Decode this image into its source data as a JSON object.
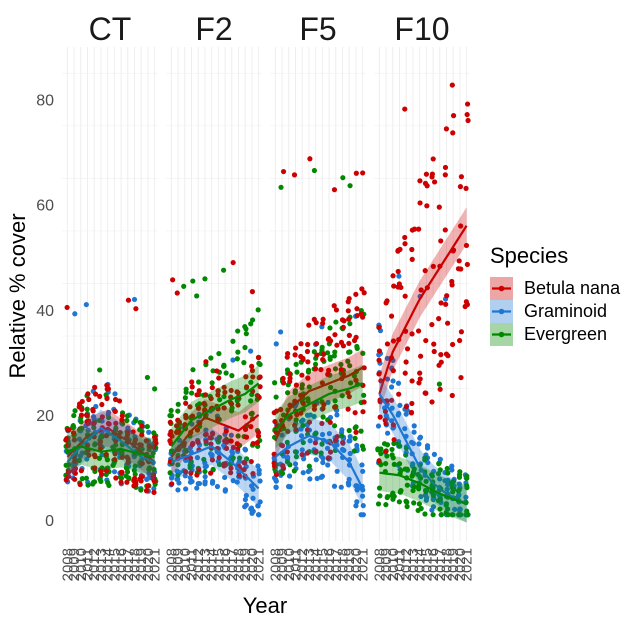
{
  "chart_data": {
    "type": "scatter",
    "facets": [
      "CT",
      "F2",
      "F5",
      "F10"
    ],
    "xlabel": "Year",
    "ylabel": "Relative % cover",
    "x_ticks": [
      2008,
      2009,
      2010,
      2011,
      2012,
      2013,
      2014,
      2015,
      2016,
      2017,
      2018,
      2019,
      2020,
      2021
    ],
    "xlim": [
      2007.2,
      2021.5
    ],
    "y_ticks": [
      0,
      20,
      40,
      60,
      80
    ],
    "ylim": [
      -4,
      90
    ],
    "grid": true,
    "legend": {
      "title": "Species",
      "placement": "right",
      "entries": [
        "Betula nana",
        "Graminoid",
        "Evergreen"
      ]
    },
    "series": [
      {
        "name": "Betula nana",
        "color": "#cc0000",
        "trend": {
          "CT": [
            [
              2008,
              12
            ],
            [
              2011,
              16
            ],
            [
              2014,
              17.5
            ],
            [
              2017,
              15
            ],
            [
              2020,
              12
            ],
            [
              2021,
              11
            ]
          ],
          "F2": [
            [
              2008,
              12
            ],
            [
              2011,
              17
            ],
            [
              2013,
              19.5
            ],
            [
              2015,
              18.5
            ],
            [
              2018,
              17
            ],
            [
              2021,
              20
            ]
          ],
          "F5": [
            [
              2008,
              15
            ],
            [
              2010,
              21
            ],
            [
              2013,
              24.5
            ],
            [
              2016,
              26
            ],
            [
              2019,
              27.5
            ],
            [
              2021,
              29
            ]
          ],
          "F10": [
            [
              2008,
              24
            ],
            [
              2010,
              32
            ],
            [
              2012,
              37
            ],
            [
              2014,
              42
            ],
            [
              2016,
              46
            ],
            [
              2018,
              50
            ],
            [
              2020,
              54
            ],
            [
              2021,
              56
            ]
          ]
        }
      },
      {
        "name": "Graminoid",
        "color": "#1f77d4",
        "trend": {
          "CT": [
            [
              2008,
              11
            ],
            [
              2010,
              14
            ],
            [
              2013,
              17.5
            ],
            [
              2016,
              15
            ],
            [
              2019,
              12
            ],
            [
              2021,
              11
            ]
          ],
          "F2": [
            [
              2008,
              11
            ],
            [
              2011,
              12.5
            ],
            [
              2014,
              14
            ],
            [
              2017,
              11
            ],
            [
              2019,
              8.5
            ],
            [
              2021,
              6
            ]
          ],
          "F5": [
            [
              2008,
              12
            ],
            [
              2010,
              14
            ],
            [
              2013,
              16
            ],
            [
              2016,
              15
            ],
            [
              2019,
              11
            ],
            [
              2021,
              6
            ]
          ],
          "F10": [
            [
              2008,
              24
            ],
            [
              2010,
              20
            ],
            [
              2012,
              15
            ],
            [
              2014,
              10
            ],
            [
              2016,
              7
            ],
            [
              2018,
              5
            ],
            [
              2021,
              3
            ]
          ]
        }
      },
      {
        "name": "Evergreen",
        "color": "#008800",
        "trend": {
          "CT": [
            [
              2008,
              13
            ],
            [
              2010,
              14
            ],
            [
              2013,
              13
            ],
            [
              2016,
              13.5
            ],
            [
              2019,
              12.5
            ],
            [
              2021,
              12
            ]
          ],
          "F2": [
            [
              2008,
              14
            ],
            [
              2011,
              19
            ],
            [
              2014,
              21
            ],
            [
              2017,
              23
            ],
            [
              2019,
              24
            ],
            [
              2021,
              26
            ]
          ],
          "F5": [
            [
              2008,
              17
            ],
            [
              2010,
              20
            ],
            [
              2013,
              22
            ],
            [
              2016,
              24
            ],
            [
              2019,
              25
            ],
            [
              2021,
              26
            ]
          ],
          "F10": [
            [
              2008,
              9
            ],
            [
              2011,
              8.5
            ],
            [
              2014,
              7
            ],
            [
              2017,
              5
            ],
            [
              2019,
              4
            ],
            [
              2021,
              3
            ]
          ]
        }
      }
    ],
    "scatter_ranges": {
      "CT": {
        "Betula nana": [
          3,
          45
        ],
        "Graminoid": [
          1,
          43
        ],
        "Evergreen": [
          1,
          30
        ]
      },
      "F2": {
        "Betula nana": [
          2,
          49
        ],
        "Graminoid": [
          1,
          33
        ],
        "Evergreen": [
          3,
          48
        ]
      },
      "F5": {
        "Betula nana": [
          3,
          70
        ],
        "Graminoid": [
          1,
          41
        ],
        "Evergreen": [
          2,
          68
        ]
      },
      "F10": {
        "Betula nana": [
          10,
          85
        ],
        "Graminoid": [
          1,
          49
        ],
        "Evergreen": [
          1,
          30
        ]
      }
    }
  }
}
